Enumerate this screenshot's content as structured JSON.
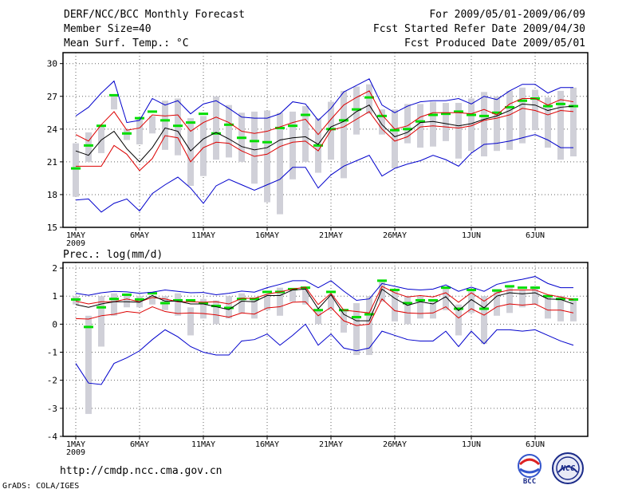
{
  "header": {
    "title": "DERF/NCC/BCC Monthly Forecast",
    "member_size": "Member Size=40",
    "variable": "Mean Surf. Temp.: °C",
    "period": "For 2009/05/01-2009/06/09",
    "refer_date": "Fcst Started Refer Date 2009/04/30",
    "produced_date": "Fcst Produced Date 2009/05/01"
  },
  "footer": {
    "url": "http://cmdp.ncc.cma.gov.cn",
    "credit": "GrADS: COLA/IGES",
    "logo_bcc": "BCC",
    "logo_ncc": "NCC"
  },
  "colors": {
    "box": "#d0d0d8",
    "mean": "#00dd00",
    "median": "#000000",
    "quartile": "#dd0000",
    "extreme": "#0000cc"
  },
  "chart_data": [
    {
      "type": "box-plume",
      "title": "Mean Surf. Temp.: °C",
      "xlabel": "",
      "ylabel": "",
      "x_days": 40,
      "xticks": [
        1,
        6,
        11,
        16,
        21,
        26,
        32,
        37
      ],
      "xtick_labels": [
        "1MAY",
        "6MAY",
        "11MAY",
        "16MAY",
        "21MAY",
        "26MAY",
        "1JUN",
        "6JUN"
      ],
      "year_label": "2009",
      "ylim": [
        15,
        31
      ],
      "yticks": [
        15,
        18,
        21,
        24,
        27,
        30
      ],
      "grid": true,
      "series": {
        "max": [
          25.2,
          26.0,
          27.3,
          28.4,
          24.6,
          24.8,
          26.8,
          26.2,
          26.6,
          25.4,
          26.3,
          26.6,
          25.9,
          25.1,
          25.0,
          25.0,
          25.4,
          26.5,
          26.3,
          24.8,
          25.9,
          27.4,
          28.0,
          28.6,
          26.2,
          25.5,
          26.1,
          26.5,
          26.6,
          26.6,
          26.8,
          26.3,
          27.0,
          26.7,
          27.5,
          28.1,
          28.1,
          27.3,
          27.8,
          27.8
        ],
        "q3": [
          23.5,
          22.9,
          24.4,
          25.6,
          23.9,
          24.1,
          25.3,
          25.2,
          25.3,
          23.8,
          24.6,
          25.1,
          24.6,
          23.8,
          23.6,
          23.8,
          24.2,
          24.6,
          24.9,
          23.5,
          24.9,
          26.2,
          26.9,
          27.5,
          25.3,
          24.0,
          24.3,
          25.1,
          25.5,
          25.5,
          25.5,
          25.4,
          25.8,
          25.3,
          26.3,
          26.8,
          26.8,
          26.2,
          26.7,
          26.5
        ],
        "median": [
          22.0,
          21.6,
          23.0,
          23.8,
          22.2,
          21.0,
          22.3,
          24.1,
          23.8,
          22.0,
          23.1,
          23.7,
          23.1,
          22.4,
          22.1,
          22.3,
          23.0,
          23.2,
          23.3,
          22.6,
          24.2,
          24.7,
          25.6,
          26.2,
          24.4,
          23.3,
          23.7,
          24.6,
          24.7,
          24.5,
          24.3,
          24.5,
          24.9,
          25.2,
          25.7,
          26.3,
          26.2,
          25.7,
          26.0,
          26.1
        ],
        "q1": [
          20.6,
          20.6,
          20.6,
          22.5,
          21.7,
          20.2,
          21.3,
          23.4,
          23.2,
          21.0,
          22.3,
          22.8,
          22.7,
          22.0,
          21.5,
          21.7,
          22.4,
          22.8,
          22.9,
          22.0,
          23.9,
          24.2,
          24.9,
          25.6,
          24.0,
          22.9,
          23.3,
          24.2,
          24.3,
          24.2,
          24.1,
          24.3,
          24.8,
          25.0,
          25.3,
          25.9,
          25.7,
          25.3,
          25.7,
          25.6
        ],
        "min": [
          17.5,
          17.6,
          16.4,
          17.2,
          17.6,
          16.5,
          18.1,
          18.9,
          19.6,
          18.6,
          17.2,
          18.8,
          19.4,
          18.9,
          18.4,
          18.9,
          19.4,
          20.5,
          20.5,
          18.6,
          19.8,
          20.6,
          21.1,
          21.6,
          19.7,
          20.4,
          20.8,
          21.1,
          21.6,
          21.2,
          20.6,
          21.8,
          22.6,
          22.7,
          22.9,
          23.2,
          23.5,
          23.0,
          22.3,
          22.3
        ],
        "ens_mean": [
          20.4,
          22.5,
          24.3,
          27.1,
          23.6,
          25.0,
          25.6,
          24.8,
          24.3,
          24.6,
          25.4,
          23.6,
          24.4,
          23.2,
          22.9,
          22.8,
          24.1,
          24.3,
          25.3,
          22.5,
          24.0,
          24.8,
          25.8,
          26.9,
          25.2,
          23.9,
          24.0,
          24.7,
          25.3,
          25.4,
          25.6,
          25.3,
          25.2,
          25.5,
          26.0,
          26.6,
          26.8,
          26.1,
          26.3,
          26.1
        ],
        "box_hi": [
          22.7,
          23.7,
          24.4,
          27.1,
          24.0,
          24.9,
          25.2,
          26.6,
          26.8,
          25.0,
          25.2,
          27.0,
          26.2,
          25.5,
          25.6,
          25.7,
          25.5,
          25.6,
          26.1,
          25.0,
          26.5,
          27.5,
          27.9,
          28.1,
          25.8,
          25.8,
          26.3,
          26.3,
          26.5,
          26.4,
          26.4,
          26.8,
          27.4,
          27.0,
          27.5,
          27.8,
          27.6,
          26.9,
          27.5,
          27.8
        ],
        "box_lo": [
          17.8,
          21.0,
          21.8,
          25.8,
          23.0,
          22.6,
          23.6,
          22.1,
          21.6,
          18.8,
          19.7,
          21.2,
          21.4,
          21.0,
          19.0,
          17.3,
          16.2,
          19.4,
          21.0,
          20.0,
          21.2,
          19.5,
          23.5,
          25.4,
          23.5,
          20.4,
          22.7,
          22.3,
          22.4,
          22.9,
          21.3,
          22.0,
          21.5,
          22.0,
          22.1,
          22.7,
          23.9,
          22.3,
          21.2,
          21.5
        ]
      }
    },
    {
      "type": "box-plume",
      "title": "Prec.: log(mm/d)",
      "xlabel": "",
      "ylabel": "",
      "x_days": 40,
      "xticks": [
        1,
        6,
        11,
        16,
        21,
        26,
        32,
        37
      ],
      "xtick_labels": [
        "1MAY",
        "6MAY",
        "11MAY",
        "16MAY",
        "21MAY",
        "26MAY",
        "1JUN",
        "6JUN"
      ],
      "year_label": "2009",
      "ylim": [
        -4,
        2.2
      ],
      "yticks": [
        -4,
        -3,
        -2,
        -1,
        0,
        1,
        2
      ],
      "grid": true,
      "series": {
        "max": [
          1.1,
          1.03,
          1.12,
          1.17,
          1.15,
          1.1,
          1.14,
          1.22,
          1.17,
          1.12,
          1.13,
          1.05,
          1.1,
          1.18,
          1.14,
          1.3,
          1.42,
          1.55,
          1.55,
          1.3,
          1.55,
          1.18,
          0.85,
          0.9,
          1.45,
          1.35,
          1.25,
          1.22,
          1.25,
          1.4,
          1.17,
          1.32,
          1.17,
          1.42,
          1.52,
          1.6,
          1.7,
          1.45,
          1.3,
          1.3
        ],
        "q3": [
          0.82,
          0.72,
          0.8,
          0.8,
          0.9,
          0.8,
          0.95,
          0.9,
          0.8,
          0.8,
          0.78,
          0.8,
          0.72,
          0.92,
          0.92,
          1.07,
          1.15,
          1.25,
          1.32,
          0.7,
          1.1,
          0.5,
          0.45,
          0.4,
          1.35,
          1.12,
          0.97,
          1.02,
          0.97,
          1.12,
          0.78,
          1.12,
          0.82,
          1.12,
          1.22,
          1.22,
          1.22,
          1.05,
          0.97,
          0.87
        ],
        "median": [
          0.7,
          0.6,
          0.72,
          0.8,
          0.8,
          0.78,
          1.02,
          0.82,
          0.82,
          0.72,
          0.72,
          0.62,
          0.52,
          0.82,
          0.8,
          1.02,
          1.02,
          1.22,
          1.25,
          0.55,
          1.05,
          0.35,
          0.12,
          0.12,
          1.25,
          0.92,
          0.67,
          0.8,
          0.72,
          0.98,
          0.48,
          0.88,
          0.58,
          1.0,
          1.12,
          1.08,
          1.12,
          0.9,
          0.88,
          0.72
        ],
        "q1": [
          0.2,
          0.18,
          0.3,
          0.35,
          0.45,
          0.4,
          0.62,
          0.45,
          0.38,
          0.4,
          0.38,
          0.33,
          0.25,
          0.4,
          0.36,
          0.58,
          0.62,
          0.78,
          0.8,
          0.3,
          0.6,
          0.12,
          -0.05,
          0.0,
          0.9,
          0.48,
          0.4,
          0.38,
          0.4,
          0.62,
          0.22,
          0.55,
          0.32,
          0.62,
          0.72,
          0.68,
          0.72,
          0.5,
          0.5,
          0.4
        ],
        "min": [
          -1.4,
          -2.1,
          -2.15,
          -1.4,
          -1.2,
          -0.95,
          -0.55,
          -0.2,
          -0.45,
          -0.8,
          -1.0,
          -1.1,
          -1.1,
          -0.6,
          -0.55,
          -0.35,
          -0.75,
          -0.4,
          0.0,
          -0.75,
          -0.35,
          -0.85,
          -0.95,
          -0.85,
          -0.25,
          -0.4,
          -0.55,
          -0.6,
          -0.6,
          -0.25,
          -0.8,
          -0.25,
          -0.7,
          -0.2,
          -0.2,
          -0.25,
          -0.2,
          -0.4,
          -0.6,
          -0.75
        ],
        "ens_mean": [
          0.88,
          -0.1,
          0.6,
          0.9,
          1.05,
          0.88,
          1.1,
          0.75,
          0.85,
          0.85,
          0.75,
          0.65,
          0.58,
          0.9,
          0.9,
          1.15,
          1.15,
          1.25,
          1.3,
          0.5,
          1.15,
          0.5,
          0.25,
          0.35,
          1.55,
          1.22,
          0.75,
          0.85,
          0.85,
          1.3,
          0.55,
          1.22,
          0.55,
          1.2,
          1.35,
          1.3,
          1.3,
          1.0,
          0.9,
          0.88
        ],
        "box_hi": [
          1.0,
          0.3,
          1.0,
          1.1,
          1.05,
          1.0,
          1.0,
          1.0,
          1.1,
          0.6,
          0.9,
          0.85,
          1.0,
          1.1,
          0.9,
          1.05,
          1.3,
          1.25,
          1.3,
          0.5,
          1.05,
          0.5,
          0.75,
          1.0,
          1.55,
          1.25,
          1.0,
          1.0,
          0.9,
          1.3,
          0.7,
          1.2,
          1.0,
          1.25,
          1.35,
          1.2,
          1.35,
          1.0,
          1.0,
          0.85
        ],
        "box_lo": [
          0.7,
          -3.2,
          -0.8,
          0.3,
          0.6,
          0.6,
          0.7,
          0.5,
          0.3,
          -0.4,
          0.2,
          0.0,
          0.2,
          0.4,
          0.2,
          0.5,
          0.3,
          0.8,
          0.7,
          0.0,
          0.5,
          -0.3,
          -1.1,
          -1.1,
          0.8,
          0.1,
          0.0,
          0.2,
          0.2,
          0.5,
          -0.4,
          0.4,
          -0.7,
          0.3,
          0.4,
          0.6,
          0.7,
          0.2,
          0.1,
          0.1
        ]
      }
    }
  ]
}
